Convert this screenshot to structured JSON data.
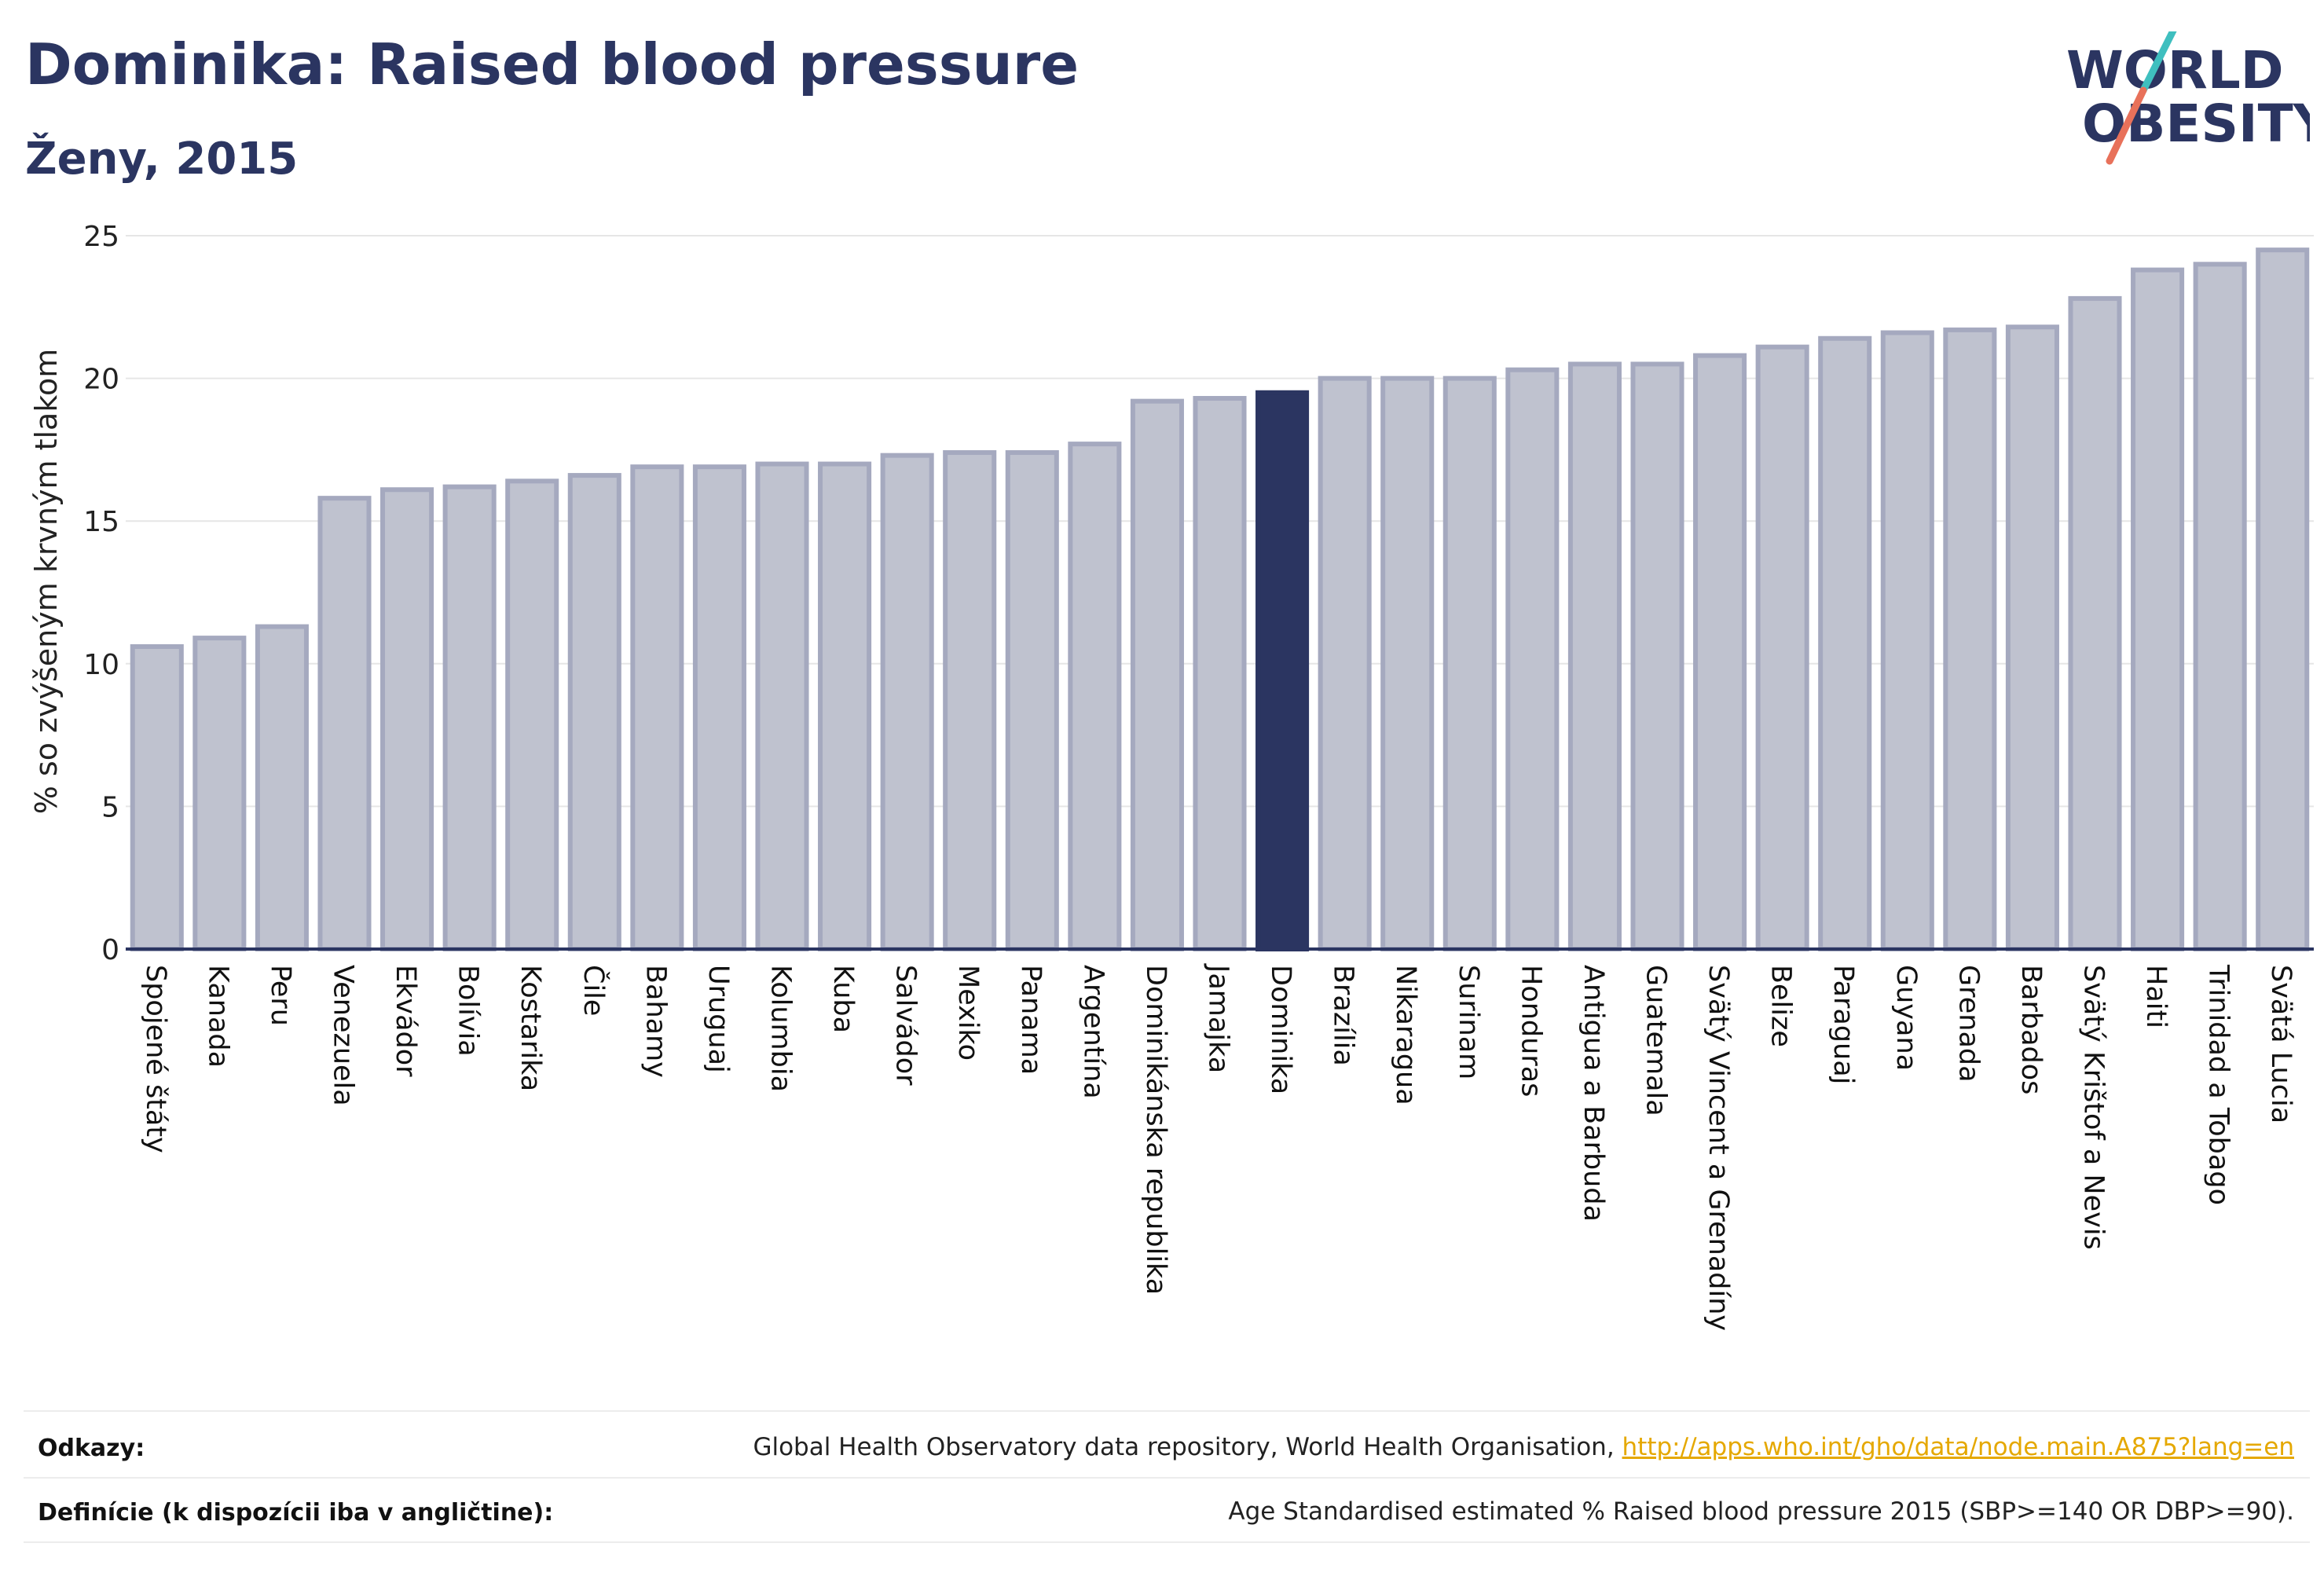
{
  "header": {
    "title": "Dominika: Raised blood pressure",
    "subtitle": "Ženy, 2015"
  },
  "logo": {
    "line1": "WORLD",
    "line2": "OBESITY"
  },
  "chart_data": {
    "type": "bar",
    "ylabel": "% so zvýšeným krvným tlakom",
    "ylim": [
      0,
      25
    ],
    "yticks": [
      0,
      5,
      10,
      15,
      20,
      25
    ],
    "grid": true,
    "highlight": "Dominika",
    "colors": {
      "bar": "#bfc2cf",
      "bar_border": "#a5a9bf",
      "highlight": "#2b3561",
      "axis": "#2b3561",
      "grid": "#e6e6e6"
    },
    "categories": [
      "Spojené štáty",
      "Kanada",
      "Peru",
      "Venezuela",
      "Ekvádor",
      "Bolívia",
      "Kostarika",
      "Čile",
      "Bahamy",
      "Uruguaj",
      "Kolumbia",
      "Kuba",
      "Salvádor",
      "Mexiko",
      "Panama",
      "Argentína",
      "Dominikánska republika",
      "Jamajka",
      "Dominika",
      "Brazília",
      "Nikaragua",
      "Surinam",
      "Honduras",
      "Antigua a Barbuda",
      "Guatemala",
      "Svätý Vincent a Grenadíny",
      "Belize",
      "Paraguaj",
      "Guyana",
      "Grenada",
      "Barbados",
      "Svätý Krištof a Nevis",
      "Haiti",
      "Trinidad a Tobago",
      "Svätá Lucia"
    ],
    "values": [
      10.6,
      10.9,
      11.3,
      15.8,
      16.1,
      16.2,
      16.4,
      16.6,
      16.9,
      16.9,
      17.0,
      17.0,
      17.3,
      17.4,
      17.4,
      17.7,
      19.2,
      19.3,
      19.5,
      20.0,
      20.0,
      20.0,
      20.3,
      20.5,
      20.5,
      20.8,
      21.1,
      21.4,
      21.6,
      21.7,
      21.8,
      22.8,
      23.8,
      24.0,
      24.5
    ]
  },
  "footer": {
    "refs_label": "Odkazy:",
    "refs_text": "Global Health Observatory data repository, World Health Organisation, ",
    "refs_link": "http://apps.who.int/gho/data/node.main.A875?lang=en",
    "defs_label": "Definície (k dispozícii iba v angličtine):",
    "defs_text": "Age Standardised estimated % Raised blood pressure 2015 (SBP>=140 OR DBP>=90)."
  }
}
